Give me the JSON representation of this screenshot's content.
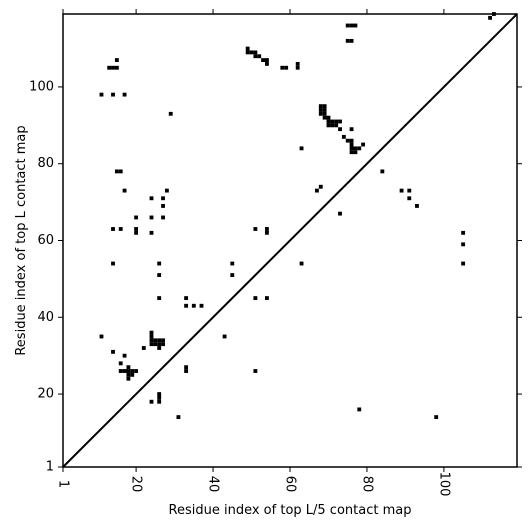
{
  "chart_data": {
    "type": "scatter",
    "title": "",
    "xlabel": "Residue index of top L/5 contact map",
    "ylabel": "Residue index of top L contact map",
    "xlim": [
      1,
      119
    ],
    "ylim": [
      1,
      119
    ],
    "xticks": [
      1,
      20,
      40,
      60,
      80,
      100
    ],
    "yticks": [
      1,
      20,
      40,
      60,
      80,
      100
    ],
    "grid": false,
    "diagonal": true,
    "marker_color": "#000000",
    "points": [
      [
        11,
        98
      ],
      [
        14,
        98
      ],
      [
        17,
        98
      ],
      [
        13,
        105
      ],
      [
        14,
        105
      ],
      [
        15,
        105
      ],
      [
        15,
        107
      ],
      [
        49,
        109
      ],
      [
        49,
        110
      ],
      [
        50,
        109
      ],
      [
        51,
        108
      ],
      [
        51,
        109
      ],
      [
        52,
        108
      ],
      [
        53,
        107
      ],
      [
        54,
        106
      ],
      [
        54,
        107
      ],
      [
        58,
        105
      ],
      [
        59,
        105
      ],
      [
        62,
        105
      ],
      [
        62,
        106
      ],
      [
        75,
        116
      ],
      [
        76,
        116
      ],
      [
        77,
        116
      ],
      [
        75,
        112
      ],
      [
        76,
        112
      ],
      [
        112,
        118
      ],
      [
        113,
        119
      ],
      [
        29,
        93
      ],
      [
        15,
        78
      ],
      [
        16,
        78
      ],
      [
        17,
        73
      ],
      [
        68,
        93
      ],
      [
        68,
        94
      ],
      [
        68,
        95
      ],
      [
        69,
        92
      ],
      [
        69,
        93
      ],
      [
        69,
        94
      ],
      [
        69,
        95
      ],
      [
        70,
        91
      ],
      [
        70,
        92
      ],
      [
        70,
        90
      ],
      [
        71,
        90
      ],
      [
        71,
        91
      ],
      [
        72,
        90
      ],
      [
        72,
        91
      ],
      [
        73,
        89
      ],
      [
        73,
        91
      ],
      [
        74,
        87
      ],
      [
        75,
        86
      ],
      [
        76,
        84
      ],
      [
        76,
        85
      ],
      [
        76,
        86
      ],
      [
        76,
        89
      ],
      [
        76,
        83
      ],
      [
        77,
        83
      ],
      [
        77,
        84
      ],
      [
        78,
        84
      ],
      [
        79,
        85
      ],
      [
        63,
        84
      ],
      [
        67,
        73
      ],
      [
        68,
        74
      ],
      [
        73,
        67
      ],
      [
        84,
        78
      ],
      [
        89,
        73
      ],
      [
        91,
        73
      ],
      [
        91,
        71
      ],
      [
        93,
        69
      ],
      [
        24,
        71
      ],
      [
        27,
        71
      ],
      [
        27,
        69
      ],
      [
        28,
        73
      ],
      [
        20,
        66
      ],
      [
        24,
        66
      ],
      [
        27,
        66
      ],
      [
        14,
        63
      ],
      [
        16,
        63
      ],
      [
        20,
        62
      ],
      [
        20,
        63
      ],
      [
        24,
        62
      ],
      [
        51,
        63
      ],
      [
        54,
        62
      ],
      [
        54,
        63
      ],
      [
        14,
        54
      ],
      [
        26,
        54
      ],
      [
        26,
        51
      ],
      [
        45,
        54
      ],
      [
        45,
        51
      ],
      [
        63,
        54
      ],
      [
        105,
        62
      ],
      [
        105,
        59
      ],
      [
        105,
        54
      ],
      [
        26,
        45
      ],
      [
        33,
        45
      ],
      [
        51,
        45
      ],
      [
        54,
        45
      ],
      [
        33,
        43
      ],
      [
        35,
        43
      ],
      [
        37,
        43
      ],
      [
        11,
        35
      ],
      [
        24,
        36
      ],
      [
        24,
        35
      ],
      [
        24,
        34
      ],
      [
        24,
        33
      ],
      [
        25,
        33
      ],
      [
        25,
        34
      ],
      [
        26,
        33
      ],
      [
        26,
        34
      ],
      [
        27,
        33
      ],
      [
        27,
        34
      ],
      [
        22,
        32
      ],
      [
        26,
        32
      ],
      [
        43,
        35
      ],
      [
        14,
        31
      ],
      [
        17,
        30
      ],
      [
        16,
        28
      ],
      [
        16,
        26
      ],
      [
        17,
        26
      ],
      [
        18,
        26
      ],
      [
        18,
        25
      ],
      [
        18,
        24
      ],
      [
        18,
        27
      ],
      [
        19,
        25
      ],
      [
        19,
        26
      ],
      [
        20,
        26
      ],
      [
        33,
        27
      ],
      [
        33,
        26
      ],
      [
        51,
        26
      ],
      [
        26,
        20
      ],
      [
        26,
        19
      ],
      [
        26,
        18
      ],
      [
        24,
        18
      ],
      [
        31,
        14
      ],
      [
        78,
        16
      ],
      [
        98,
        14
      ]
    ]
  }
}
